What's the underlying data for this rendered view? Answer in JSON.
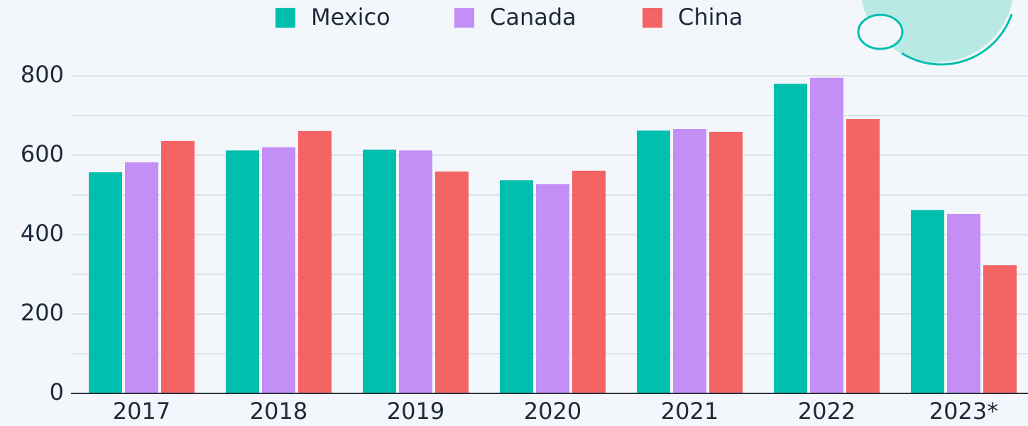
{
  "chart_data": {
    "type": "bar",
    "categories": [
      "2017",
      "2018",
      "2019",
      "2020",
      "2021",
      "2022",
      "2023*"
    ],
    "series": [
      {
        "name": "Mexico",
        "color": "#00bfae",
        "values": [
          557,
          612,
          614,
          537,
          662,
          780,
          462
        ]
      },
      {
        "name": "Canada",
        "color": "#c38ff7",
        "values": [
          582,
          620,
          612,
          527,
          666,
          795,
          452
        ]
      },
      {
        "name": "China",
        "color": "#f46464",
        "values": [
          636,
          661,
          559,
          561,
          659,
          691,
          323
        ]
      }
    ],
    "ylim": [
      0,
      800
    ],
    "yticks": [
      0,
      200,
      400,
      600,
      800
    ],
    "minor_yticks": [
      100,
      300,
      500,
      700
    ],
    "grid": true,
    "legend": "top"
  }
}
